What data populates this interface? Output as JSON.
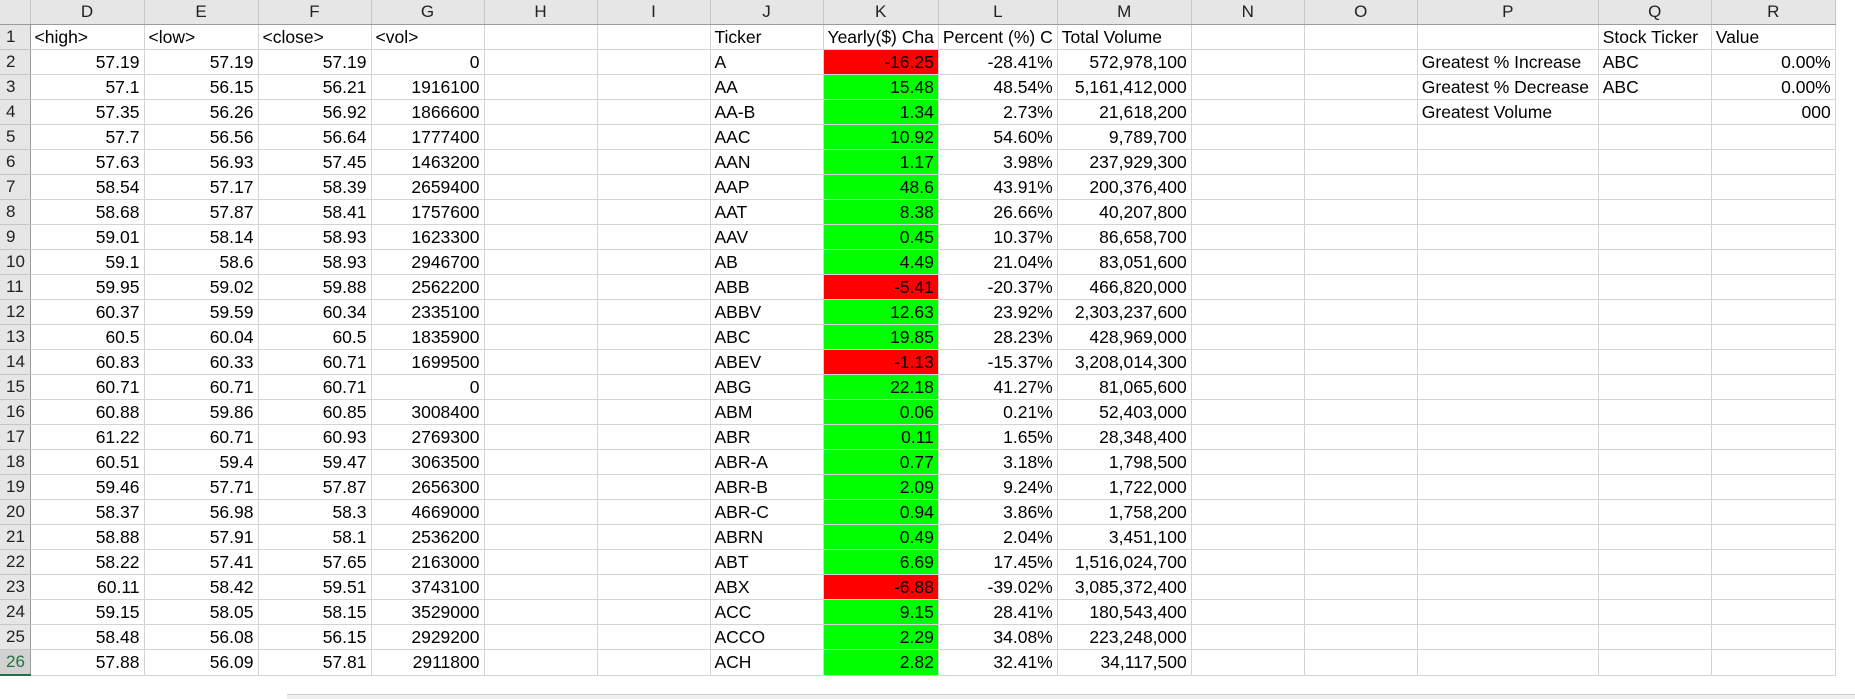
{
  "columns": [
    "D",
    "E",
    "F",
    "G",
    "H",
    "I",
    "J",
    "K",
    "L",
    "M",
    "N",
    "O",
    "P",
    "Q",
    "R"
  ],
  "header_row": {
    "D": "<high>",
    "E": "<low>",
    "F": "<close>",
    "G": "<vol>",
    "J": "Ticker",
    "K": "Yearly($) Cha",
    "L": "Percent (%) C",
    "M": "Total Volume",
    "Q": "Stock Ticker",
    "R": "Value"
  },
  "rows": [
    {
      "n": "2",
      "D": "57.19",
      "E": "57.19",
      "F": "57.19",
      "G": "0",
      "J": "A",
      "K": "-16.25",
      "L": "-28.41%",
      "M": "572,978,100",
      "P": "Greatest % Increase",
      "Q": "ABC",
      "R": "0.00%"
    },
    {
      "n": "3",
      "D": "57.1",
      "E": "56.15",
      "F": "56.21",
      "G": "1916100",
      "J": "AA",
      "K": "15.48",
      "L": "48.54%",
      "M": "5,161,412,000",
      "P": "Greatest % Decrease",
      "Q": "ABC",
      "R": "0.00%"
    },
    {
      "n": "4",
      "D": "57.35",
      "E": "56.26",
      "F": "56.92",
      "G": "1866600",
      "J": "AA-B",
      "K": "1.34",
      "L": "2.73%",
      "M": "21,618,200",
      "P": "Greatest Volume",
      "R": "000"
    },
    {
      "n": "5",
      "D": "57.7",
      "E": "56.56",
      "F": "56.64",
      "G": "1777400",
      "J": "AAC",
      "K": "10.92",
      "L": "54.60%",
      "M": "9,789,700"
    },
    {
      "n": "6",
      "D": "57.63",
      "E": "56.93",
      "F": "57.45",
      "G": "1463200",
      "J": "AAN",
      "K": "1.17",
      "L": "3.98%",
      "M": "237,929,300"
    },
    {
      "n": "7",
      "D": "58.54",
      "E": "57.17",
      "F": "58.39",
      "G": "2659400",
      "J": "AAP",
      "K": "48.6",
      "L": "43.91%",
      "M": "200,376,400"
    },
    {
      "n": "8",
      "D": "58.68",
      "E": "57.87",
      "F": "58.41",
      "G": "1757600",
      "J": "AAT",
      "K": "8.38",
      "L": "26.66%",
      "M": "40,207,800"
    },
    {
      "n": "9",
      "D": "59.01",
      "E": "58.14",
      "F": "58.93",
      "G": "1623300",
      "J": "AAV",
      "K": "0.45",
      "L": "10.37%",
      "M": "86,658,700"
    },
    {
      "n": "10",
      "D": "59.1",
      "E": "58.6",
      "F": "58.93",
      "G": "2946700",
      "J": "AB",
      "K": "4.49",
      "L": "21.04%",
      "M": "83,051,600"
    },
    {
      "n": "11",
      "D": "59.95",
      "E": "59.02",
      "F": "59.88",
      "G": "2562200",
      "J": "ABB",
      "K": "-5.41",
      "L": "-20.37%",
      "M": "466,820,000"
    },
    {
      "n": "12",
      "D": "60.37",
      "E": "59.59",
      "F": "60.34",
      "G": "2335100",
      "J": "ABBV",
      "K": "12.63",
      "L": "23.92%",
      "M": "2,303,237,600"
    },
    {
      "n": "13",
      "D": "60.5",
      "E": "60.04",
      "F": "60.5",
      "G": "1835900",
      "J": "ABC",
      "K": "19.85",
      "L": "28.23%",
      "M": "428,969,000"
    },
    {
      "n": "14",
      "D": "60.83",
      "E": "60.33",
      "F": "60.71",
      "G": "1699500",
      "J": "ABEV",
      "K": "-1.13",
      "L": "-15.37%",
      "M": "3,208,014,300"
    },
    {
      "n": "15",
      "D": "60.71",
      "E": "60.71",
      "F": "60.71",
      "G": "0",
      "J": "ABG",
      "K": "22.18",
      "L": "41.27%",
      "M": "81,065,600"
    },
    {
      "n": "16",
      "D": "60.88",
      "E": "59.86",
      "F": "60.85",
      "G": "3008400",
      "J": "ABM",
      "K": "0.06",
      "L": "0.21%",
      "M": "52,403,000"
    },
    {
      "n": "17",
      "D": "61.22",
      "E": "60.71",
      "F": "60.93",
      "G": "2769300",
      "J": "ABR",
      "K": "0.11",
      "L": "1.65%",
      "M": "28,348,400"
    },
    {
      "n": "18",
      "D": "60.51",
      "E": "59.4",
      "F": "59.47",
      "G": "3063500",
      "J": "ABR-A",
      "K": "0.77",
      "L": "3.18%",
      "M": "1,798,500"
    },
    {
      "n": "19",
      "D": "59.46",
      "E": "57.71",
      "F": "57.87",
      "G": "2656300",
      "J": "ABR-B",
      "K": "2.09",
      "L": "9.24%",
      "M": "1,722,000"
    },
    {
      "n": "20",
      "D": "58.37",
      "E": "56.98",
      "F": "58.3",
      "G": "4669000",
      "J": "ABR-C",
      "K": "0.94",
      "L": "3.86%",
      "M": "1,758,200"
    },
    {
      "n": "21",
      "D": "58.88",
      "E": "57.91",
      "F": "58.1",
      "G": "2536200",
      "J": "ABRN",
      "K": "0.49",
      "L": "2.04%",
      "M": "3,451,100"
    },
    {
      "n": "22",
      "D": "58.22",
      "E": "57.41",
      "F": "57.65",
      "G": "2163000",
      "J": "ABT",
      "K": "6.69",
      "L": "17.45%",
      "M": "1,516,024,700"
    },
    {
      "n": "23",
      "D": "60.11",
      "E": "58.42",
      "F": "59.51",
      "G": "3743100",
      "J": "ABX",
      "K": "-6.88",
      "L": "-39.02%",
      "M": "3,085,372,400"
    },
    {
      "n": "24",
      "D": "59.15",
      "E": "58.05",
      "F": "58.15",
      "G": "3529000",
      "J": "ACC",
      "K": "9.15",
      "L": "28.41%",
      "M": "180,543,400"
    },
    {
      "n": "25",
      "D": "58.48",
      "E": "56.08",
      "F": "56.15",
      "G": "2929200",
      "J": "ACCO",
      "K": "2.29",
      "L": "34.08%",
      "M": "223,248,000"
    },
    {
      "n": "26",
      "D": "57.88",
      "E": "56.09",
      "F": "57.81",
      "G": "2911800",
      "J": "ACH",
      "K": "2.82",
      "L": "32.41%",
      "M": "34,117,500"
    }
  ],
  "colors": {
    "positive_fill": "#00ff00",
    "negative_fill": "#ff0000",
    "header_bg": "#e6e6e6",
    "excel_green": "#217346"
  }
}
